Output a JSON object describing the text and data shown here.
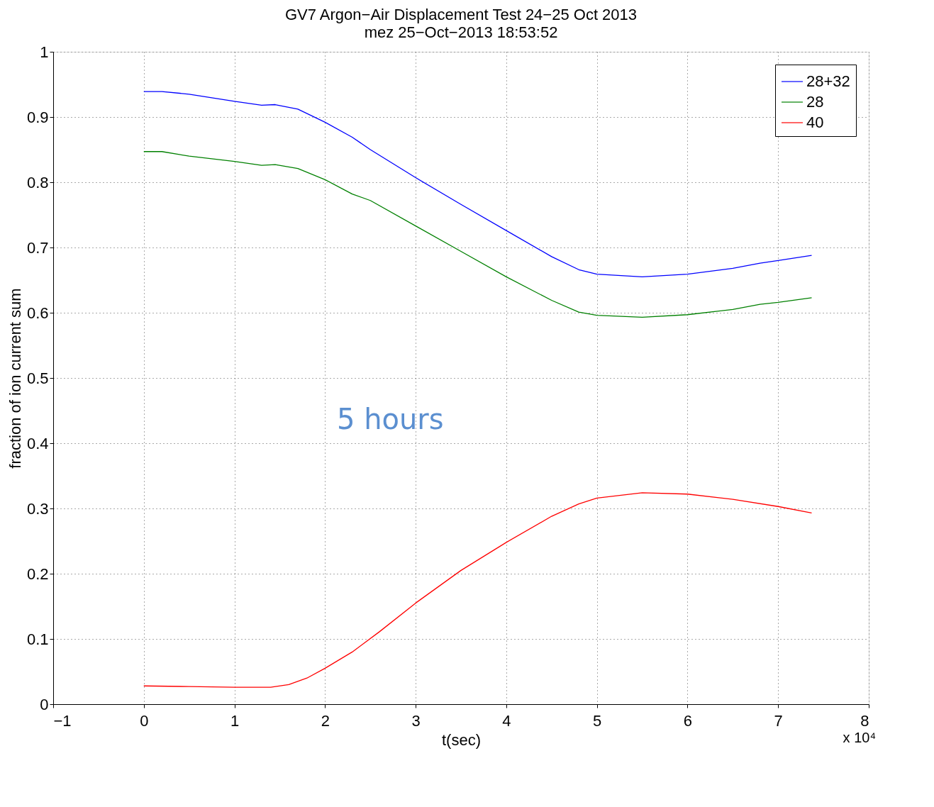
{
  "chart_data": {
    "type": "line",
    "title": "GV7 Argon−Air Displacement Test 24−25 Oct 2013",
    "subtitle": "mez  25−Oct−2013 18:53:52",
    "xlabel": "t(sec)",
    "ylabel": "fraction of ion current sum",
    "annotations": [
      "5 hours",
      "x 10⁴"
    ],
    "x": [
      0,
      0.2,
      0.5,
      1,
      1.3,
      1.45,
      1.7,
      2,
      2.3,
      2.5,
      3,
      3.5,
      4,
      4.5,
      4.8,
      5,
      5.5,
      6,
      6.5,
      6.8,
      7,
      7.37
    ],
    "series": [
      {
        "name": "28+32",
        "color": "#0000ff",
        "values": [
          0.939,
          0.939,
          0.935,
          0.924,
          0.918,
          0.919,
          0.912,
          0.892,
          0.869,
          0.85,
          0.807,
          0.766,
          0.726,
          0.686,
          0.666,
          0.659,
          0.655,
          0.659,
          0.668,
          0.676,
          0.68,
          0.688
        ]
      },
      {
        "name": "28",
        "color": "#008000",
        "values": [
          0.847,
          0.847,
          0.84,
          0.832,
          0.826,
          0.827,
          0.821,
          0.804,
          0.782,
          0.772,
          0.733,
          0.694,
          0.655,
          0.619,
          0.601,
          0.596,
          0.593,
          0.597,
          0.605,
          0.613,
          0.616,
          0.623
        ]
      },
      {
        "name": "40",
        "color": "#ff0000",
        "x": [
          0,
          0.5,
          1,
          1.4,
          1.6,
          1.8,
          2,
          2.3,
          2.6,
          3,
          3.5,
          4,
          4.5,
          4.8,
          5,
          5.5,
          6,
          6.5,
          7,
          7.37
        ],
        "values": [
          0.028,
          0.027,
          0.026,
          0.026,
          0.03,
          0.04,
          0.055,
          0.08,
          0.111,
          0.155,
          0.205,
          0.248,
          0.288,
          0.307,
          0.316,
          0.324,
          0.322,
          0.314,
          0.303,
          0.293
        ]
      }
    ],
    "xlim": [
      -1,
      8
    ],
    "xticks": [
      {
        "value": -1,
        "label": "−1"
      },
      0,
      1,
      2,
      3,
      4,
      5,
      6,
      7,
      8
    ],
    "ylim": [
      0,
      1
    ],
    "yticks": [
      0,
      0.1,
      0.2,
      0.3,
      0.4,
      0.5,
      0.6,
      0.7,
      0.8,
      0.9,
      1
    ],
    "grid": true,
    "legend": "top right",
    "line_style": "solid",
    "marker": "none"
  }
}
